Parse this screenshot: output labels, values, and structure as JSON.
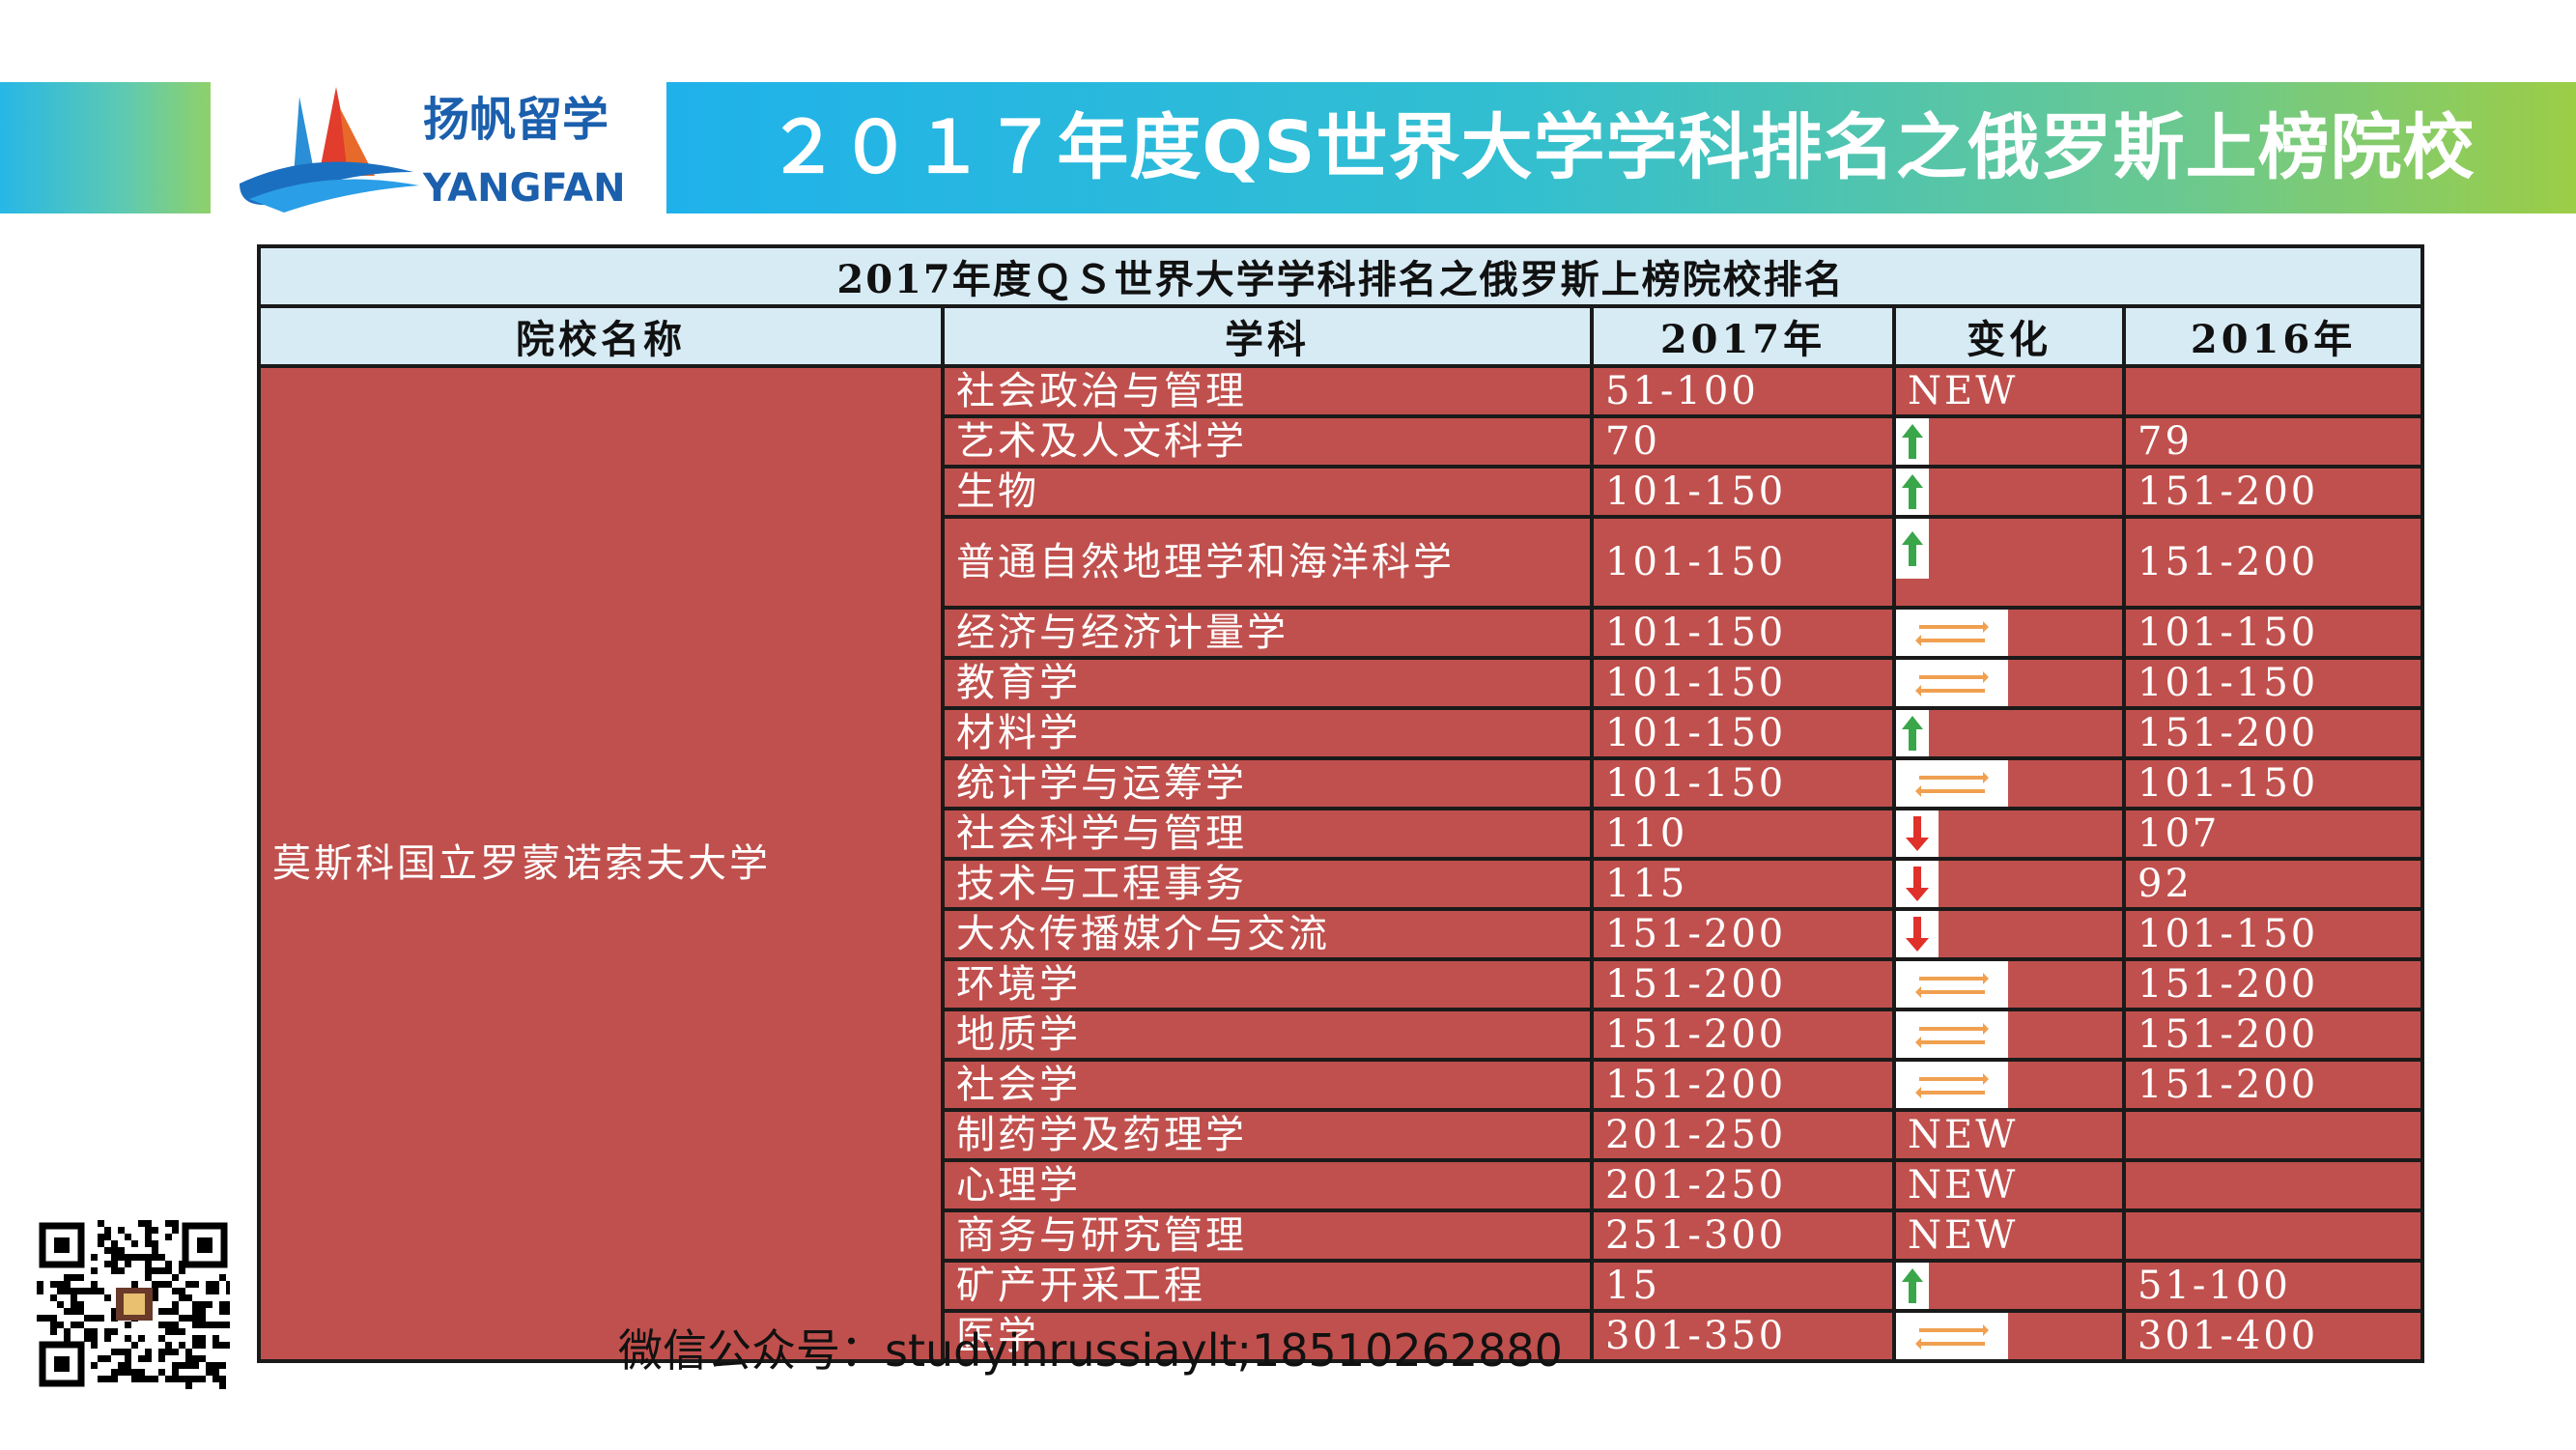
{
  "header": {
    "title": "２０１７年度QS世界大学学科排名之俄罗斯上榜院校",
    "logo_cn": "扬帆留学",
    "logo_en": "YANGFAN"
  },
  "table": {
    "title": "2017年度ＱＳ世界大学学科排名之俄罗斯上榜院校排名",
    "headers": [
      "院校名称",
      "学科",
      "2017年",
      "变化",
      "2016年"
    ],
    "university": "莫斯科国立罗蒙诺索夫大学",
    "rows": [
      {
        "subject": "社会政治与管理",
        "y2017": "51-100",
        "change": "NEW",
        "change_icon": "",
        "y2016": ""
      },
      {
        "subject": "艺术及人文科学",
        "y2017": "70",
        "change": "",
        "change_icon": "arrow-up",
        "y2016": "79"
      },
      {
        "subject": "生物",
        "y2017": "101-150",
        "change": "",
        "change_icon": "arrow-up",
        "y2016": "151-200"
      },
      {
        "subject": "普通自然地理学和海洋科学",
        "y2017": "101-150",
        "change": "",
        "change_icon": "arrow-up",
        "y2016": "151-200"
      },
      {
        "subject": "经济与经济计量学",
        "y2017": "101-150",
        "change": "",
        "change_icon": "arrow-swap",
        "y2016": "101-150"
      },
      {
        "subject": "教育学",
        "y2017": "101-150",
        "change": "",
        "change_icon": "arrow-swap",
        "y2016": "101-150"
      },
      {
        "subject": "材料学",
        "y2017": "101-150",
        "change": "",
        "change_icon": "arrow-up",
        "y2016": "151-200"
      },
      {
        "subject": "统计学与运筹学",
        "y2017": "101-150",
        "change": "",
        "change_icon": "arrow-swap",
        "y2016": "101-150"
      },
      {
        "subject": "社会科学与管理",
        "y2017": "110",
        "change": "",
        "change_icon": "arrow-down",
        "y2016": "107"
      },
      {
        "subject": "技术与工程事务",
        "y2017": "115",
        "change": "",
        "change_icon": "arrow-down",
        "y2016": "92"
      },
      {
        "subject": "大众传播媒介与交流",
        "y2017": "151-200",
        "change": "",
        "change_icon": "arrow-down",
        "y2016": "101-150"
      },
      {
        "subject": "环境学",
        "y2017": "151-200",
        "change": "",
        "change_icon": "arrow-swap",
        "y2016": "151-200"
      },
      {
        "subject": "地质学",
        "y2017": "151-200",
        "change": "",
        "change_icon": "arrow-swap",
        "y2016": "151-200"
      },
      {
        "subject": "社会学",
        "y2017": "151-200",
        "change": "",
        "change_icon": "arrow-swap",
        "y2016": "151-200"
      },
      {
        "subject": "制药学及药理学",
        "y2017": "201-250",
        "change": "NEW",
        "change_icon": "",
        "y2016": ""
      },
      {
        "subject": "心理学",
        "y2017": "201-250",
        "change": "NEW",
        "change_icon": "",
        "y2016": ""
      },
      {
        "subject": "商务与研究管理",
        "y2017": "251-300",
        "change": "NEW",
        "change_icon": "",
        "y2016": ""
      },
      {
        "subject": "矿产开采工程",
        "y2017": "15",
        "change": "",
        "change_icon": "arrow-up",
        "y2016": "51-100"
      },
      {
        "subject": "医学",
        "y2017": "301-350",
        "change": "",
        "change_icon": "arrow-swap",
        "y2016": "301-400"
      }
    ]
  },
  "footer": {
    "wechat": "微信公众号：studyinrussiaylt;18510262880"
  },
  "colors": {
    "row_bg": "#c0504d",
    "header_bg": "#d7ebf5",
    "arrow_up": "#3aa64a",
    "arrow_down": "#e0302a",
    "arrow_swap": "#f0a050"
  }
}
